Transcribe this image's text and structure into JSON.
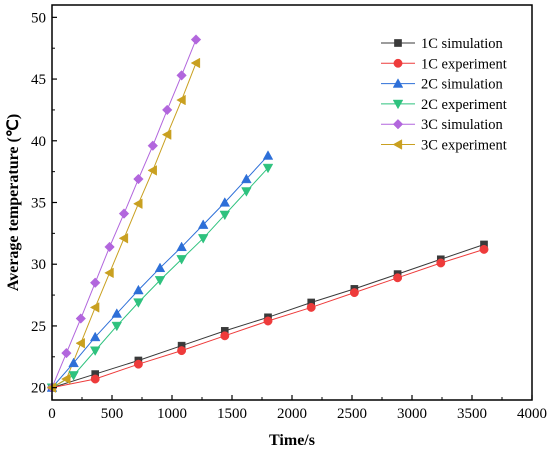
{
  "chart_data": {
    "type": "line",
    "xlabel": "Time/s",
    "ylabel": "Average temperature (℃)",
    "xlim": [
      0,
      4000
    ],
    "ylim": [
      19,
      51
    ],
    "xticks": [
      0,
      500,
      1000,
      1500,
      2000,
      2500,
      3000,
      3500,
      4000
    ],
    "yticks": [
      20,
      25,
      30,
      35,
      40,
      45,
      50
    ],
    "grid": false,
    "legend_position": "top-right",
    "series": [
      {
        "name": "1C simulation",
        "color": "#3a3a3a",
        "marker": "square",
        "x": [
          0,
          360,
          720,
          1080,
          1440,
          1800,
          2160,
          2520,
          2880,
          3240,
          3600
        ],
        "y": [
          20.0,
          21.1,
          22.2,
          23.4,
          24.6,
          25.7,
          26.9,
          28.0,
          29.2,
          30.4,
          31.6
        ]
      },
      {
        "name": "1C experiment",
        "color": "#ee3b3b",
        "marker": "circle",
        "x": [
          0,
          360,
          720,
          1080,
          1440,
          1800,
          2160,
          2520,
          2880,
          3240,
          3600
        ],
        "y": [
          20.0,
          20.7,
          21.9,
          23.0,
          24.2,
          25.4,
          26.5,
          27.7,
          28.9,
          30.1,
          31.2
        ]
      },
      {
        "name": "2C simulation",
        "color": "#2d6fd8",
        "marker": "triangle-up",
        "x": [
          0,
          180,
          360,
          540,
          720,
          900,
          1080,
          1260,
          1440,
          1620,
          1800
        ],
        "y": [
          20.0,
          22.0,
          24.1,
          26.0,
          27.9,
          29.7,
          31.4,
          33.2,
          35.0,
          36.9,
          38.8
        ]
      },
      {
        "name": "2C experiment",
        "color": "#2ec27e",
        "marker": "triangle-down",
        "x": [
          0,
          180,
          360,
          540,
          720,
          900,
          1080,
          1260,
          1440,
          1620,
          1800
        ],
        "y": [
          20.0,
          21.0,
          23.0,
          25.0,
          26.9,
          28.7,
          30.4,
          32.1,
          34.0,
          35.9,
          37.8
        ]
      },
      {
        "name": "3C simulation",
        "color": "#b266dd",
        "marker": "diamond",
        "x": [
          0,
          120,
          240,
          360,
          480,
          600,
          720,
          840,
          960,
          1080,
          1200
        ],
        "y": [
          20.0,
          22.8,
          25.6,
          28.5,
          31.4,
          34.1,
          36.9,
          39.6,
          42.5,
          45.3,
          48.2
        ]
      },
      {
        "name": "3C experiment",
        "color": "#c9a020",
        "marker": "triangle-left",
        "x": [
          0,
          120,
          240,
          360,
          480,
          600,
          720,
          840,
          960,
          1080,
          1200
        ],
        "y": [
          20.0,
          20.7,
          23.6,
          26.5,
          29.3,
          32.1,
          34.9,
          37.6,
          40.5,
          43.3,
          46.3
        ]
      }
    ]
  }
}
